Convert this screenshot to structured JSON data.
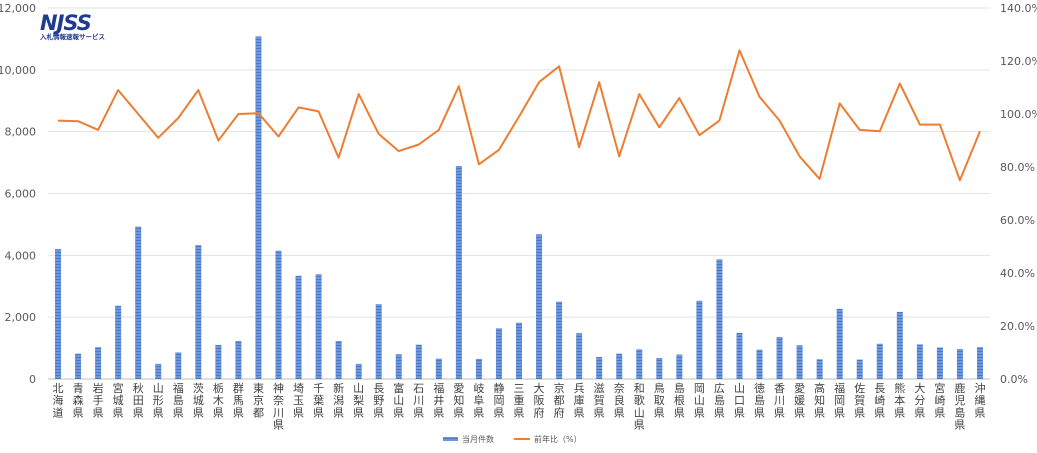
{
  "logo": {
    "main": "NJSS",
    "sub": "入札情報速報サービス"
  },
  "chart_data": {
    "type": "bar",
    "categories": [
      "北海道",
      "青森県",
      "岩手県",
      "宮城県",
      "秋田県",
      "山形県",
      "福島県",
      "茨城県",
      "栃木県",
      "群馬県",
      "東京都",
      "神奈川県",
      "埼玉県",
      "千葉県",
      "新潟県",
      "山梨県",
      "長野県",
      "富山県",
      "石川県",
      "福井県",
      "愛知県",
      "岐阜県",
      "静岡県",
      "三重県",
      "大阪府",
      "京都府",
      "兵庫県",
      "滋賀県",
      "奈良県",
      "和歌山県",
      "鳥取県",
      "島根県",
      "岡山県",
      "広島県",
      "山口県",
      "徳島県",
      "香川県",
      "愛媛県",
      "高知県",
      "福岡県",
      "佐賀県",
      "長崎県",
      "熊本県",
      "大分県",
      "宮崎県",
      "鹿児島県",
      "沖縄県"
    ],
    "series": [
      {
        "name": "当月件数",
        "axis": "left",
        "kind": "bar",
        "color": "#5b87d6",
        "values": [
          4200,
          820,
          1030,
          2370,
          4930,
          490,
          860,
          4330,
          1100,
          1230,
          11080,
          4150,
          3340,
          3390,
          1230,
          490,
          2420,
          800,
          1110,
          660,
          6890,
          650,
          1640,
          1820,
          4680,
          2500,
          1480,
          710,
          820,
          960,
          680,
          790,
          2530,
          3870,
          1490,
          950,
          1360,
          1090,
          640,
          2270,
          630,
          1140,
          2170,
          1120,
          1020,
          970,
          1030
        ]
      },
      {
        "name": "前年比（%）",
        "axis": "right",
        "kind": "line",
        "color": "#ed7d31",
        "values": [
          97.5,
          97.3,
          94.0,
          109.0,
          100.0,
          91.0,
          98.5,
          109.0,
          90.0,
          100.0,
          100.3,
          91.5,
          102.5,
          101.0,
          83.5,
          107.5,
          92.5,
          86.0,
          88.5,
          94.0,
          110.5,
          81.0,
          86.5,
          99.0,
          112.0,
          118.0,
          87.5,
          112.0,
          84.0,
          107.5,
          95.0,
          106.0,
          92.0,
          97.5,
          124.0,
          106.5,
          97.5,
          84.0,
          75.5,
          104.0,
          94.0,
          93.5,
          111.5,
          96.0,
          96.0,
          75.0,
          93.5
        ]
      }
    ],
    "y_left": {
      "min": 0,
      "max": 12000,
      "ticks": [
        "0",
        "2,000",
        "4,000",
        "6,000",
        "8,000",
        "10,000",
        "12,000"
      ]
    },
    "y_right": {
      "min": 0,
      "max": 140,
      "ticks": [
        "0.0%",
        "20.0%",
        "40.0%",
        "60.0%",
        "80.0%",
        "100.0%",
        "120.0%",
        "140.0%"
      ]
    },
    "grid": true,
    "legend_position": "bottom-center"
  }
}
